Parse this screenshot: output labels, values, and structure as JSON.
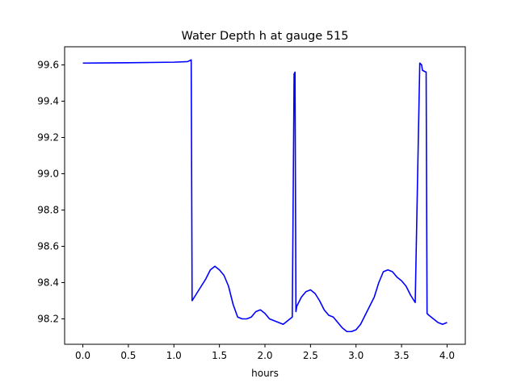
{
  "chart_data": {
    "type": "line",
    "title": "Water Depth h at gauge 515",
    "xlabel": "hours",
    "ylabel": "",
    "xlim": [
      -0.2,
      4.2
    ],
    "ylim": [
      98.06,
      99.7
    ],
    "grid": false,
    "legend": "none",
    "x_ticks": [
      0.0,
      0.5,
      1.0,
      1.5,
      2.0,
      2.5,
      3.0,
      3.5,
      4.0
    ],
    "x_tick_labels": [
      "0.0",
      "0.5",
      "1.0",
      "1.5",
      "2.0",
      "2.5",
      "3.0",
      "3.5",
      "4.0"
    ],
    "y_ticks": [
      98.2,
      98.4,
      98.6,
      98.8,
      99.0,
      99.2,
      99.4,
      99.6
    ],
    "y_tick_labels": [
      "98.2",
      "98.4",
      "98.6",
      "98.8",
      "99.0",
      "99.2",
      "99.4",
      "99.6"
    ],
    "line_color": "#0000ff",
    "series": [
      {
        "x": [
          0.0,
          0.5,
          1.0,
          1.15,
          1.18,
          1.19,
          1.2,
          1.25,
          1.3,
          1.35,
          1.4,
          1.45,
          1.5,
          1.55,
          1.6,
          1.65,
          1.7,
          1.75,
          1.8,
          1.85,
          1.9,
          1.95,
          2.0,
          2.05,
          2.1,
          2.15,
          2.2,
          2.25,
          2.3,
          2.32,
          2.33,
          2.34,
          2.35,
          2.4,
          2.45,
          2.5,
          2.55,
          2.6,
          2.65,
          2.7,
          2.75,
          2.8,
          2.85,
          2.9,
          2.95,
          3.0,
          3.05,
          3.1,
          3.15,
          3.2,
          3.25,
          3.3,
          3.35,
          3.4,
          3.45,
          3.5,
          3.55,
          3.6,
          3.65,
          3.7,
          3.72,
          3.73,
          3.77,
          3.78,
          3.8,
          3.85,
          3.9,
          3.95,
          4.0
        ],
        "y": [
          99.61,
          99.612,
          99.615,
          99.618,
          99.625,
          99.628,
          98.3,
          98.34,
          98.38,
          98.42,
          98.47,
          98.49,
          98.47,
          98.44,
          98.38,
          98.28,
          98.21,
          98.2,
          98.2,
          98.21,
          98.24,
          98.25,
          98.23,
          98.2,
          98.19,
          98.18,
          98.17,
          98.19,
          98.21,
          99.55,
          99.56,
          98.24,
          98.27,
          98.32,
          98.35,
          98.36,
          98.34,
          98.3,
          98.25,
          98.22,
          98.21,
          98.18,
          98.15,
          98.13,
          98.13,
          98.14,
          98.17,
          98.22,
          98.27,
          98.32,
          98.4,
          98.46,
          98.47,
          98.46,
          98.43,
          98.41,
          98.38,
          98.33,
          98.29,
          99.61,
          99.6,
          99.57,
          99.56,
          98.23,
          98.22,
          98.2,
          98.18,
          98.17,
          98.18
        ]
      }
    ]
  }
}
